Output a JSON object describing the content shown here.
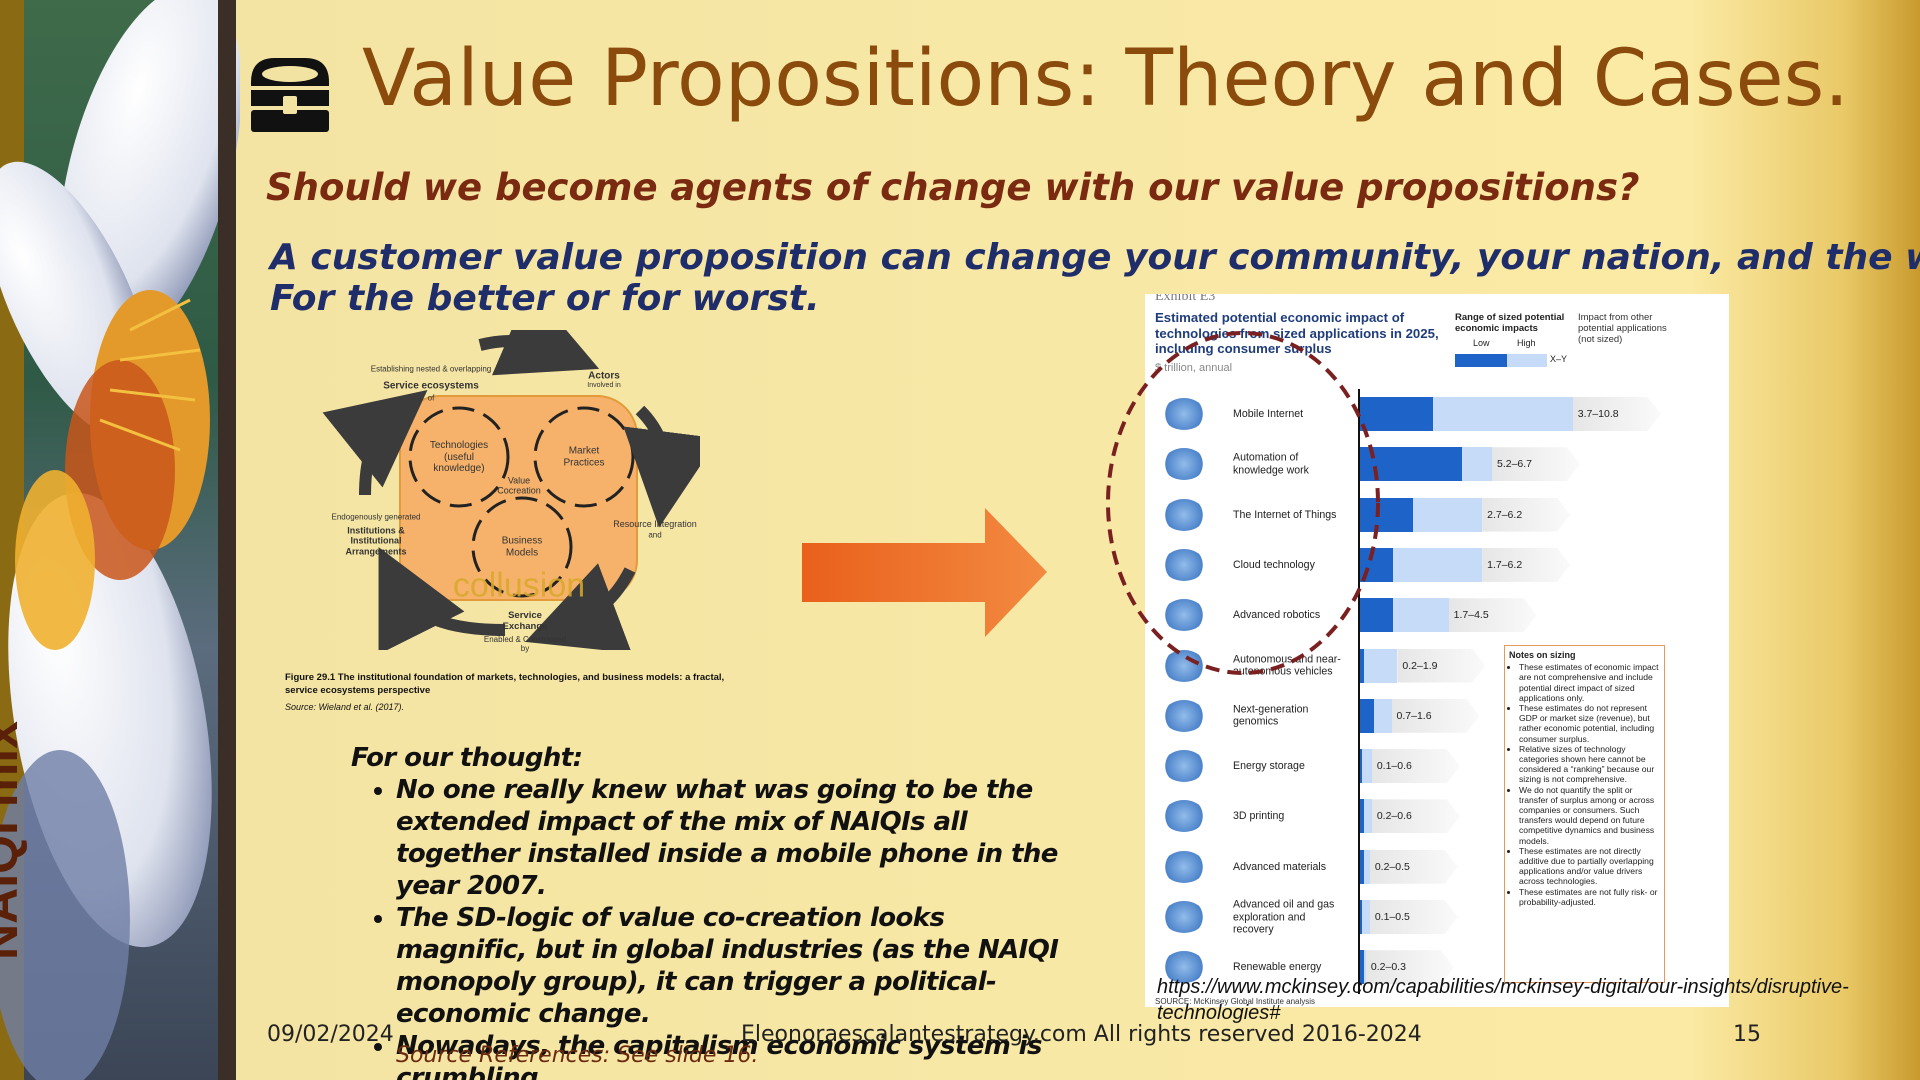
{
  "header": {
    "title": "Value Propositions: Theory and Cases.",
    "subtitle": "Should we become agents of change with our value propositions?"
  },
  "statement": [
    "A customer value proposition can change your community, your nation, and the world.",
    "For the better or for worst."
  ],
  "diagram": {
    "establishing": "Establishing nested & overlapping",
    "service_ecosystems": "Service ecosystems",
    "of": "of",
    "actors": "Actors",
    "involved_in": "Involved in",
    "technologies": "Technologies (useful knowledge)",
    "market_practices": "Market Practices",
    "value_cocreation": "Value Cocreation",
    "business_models": "Business Models",
    "endogenously": "Endogenously generated",
    "institutions": "Institutions & Institutional Arrangements",
    "resource_integration": "Resource Integration",
    "and": "and",
    "collusion": "collusion",
    "service_exchange": "Service Exchange",
    "enabled": "Enabled & Constrained by",
    "caption": "Figure 29.1   The institutional foundation of markets, technologies, and business models: a fractal, service ecosystems perspective",
    "source": "Source: Wieland et al. (2017)."
  },
  "arrow_label": "NAIQI mix",
  "exhibit": {
    "tag": "Exhibit E3",
    "title": "Estimated potential economic impact of technologies from sized applications in 2025, including consumer surplus",
    "unit": "$ trillion, annual",
    "legend": {
      "range": "Range of sized potential economic impacts",
      "low": "Low",
      "high": "High",
      "xy": "X–Y",
      "other": "Impact from other potential applications (not sized)"
    },
    "rows": [
      {
        "label": "Mobile Internet",
        "low": 3.7,
        "high": 10.8,
        "range": "3.7–10.8"
      },
      {
        "label": "Automation of knowledge work",
        "low": 5.2,
        "high": 6.7,
        "range": "5.2–6.7"
      },
      {
        "label": "The Internet of Things",
        "low": 2.7,
        "high": 6.2,
        "range": "2.7–6.2"
      },
      {
        "label": "Cloud technology",
        "low": 1.7,
        "high": 6.2,
        "range": "1.7–6.2"
      },
      {
        "label": "Advanced robotics",
        "low": 1.7,
        "high": 4.5,
        "range": "1.7–4.5"
      },
      {
        "label": "Autonomous and near-autonomous vehicles",
        "low": 0.2,
        "high": 1.9,
        "range": "0.2–1.9"
      },
      {
        "label": "Next-generation genomics",
        "low": 0.7,
        "high": 1.6,
        "range": "0.7–1.6"
      },
      {
        "label": "Energy storage",
        "low": 0.1,
        "high": 0.6,
        "range": "0.1–0.6"
      },
      {
        "label": "3D printing",
        "low": 0.2,
        "high": 0.6,
        "range": "0.2–0.6"
      },
      {
        "label": "Advanced materials",
        "low": 0.2,
        "high": 0.5,
        "range": "0.2–0.5"
      },
      {
        "label": "Advanced oil and gas exploration and recovery",
        "low": 0.1,
        "high": 0.5,
        "range": "0.1–0.5"
      },
      {
        "label": "Renewable energy",
        "low": 0.2,
        "high": 0.3,
        "range": "0.2–0.3"
      }
    ],
    "notes": {
      "title": "Notes on sizing",
      "items": [
        "These estimates of economic impact are not comprehensive and include potential direct impact of sized applications only.",
        "These estimates do not represent GDP or market size (revenue), but rather economic potential, including consumer surplus.",
        "Relative sizes of technology categories shown here cannot be considered a “ranking” because our sizing is not comprehensive.",
        "We do not quantify the split or transfer of surplus among or across companies or consumers. Such transfers would depend on future competitive dynamics and business models.",
        "These estimates are not directly additive due to partially overlapping applications and/or value drivers across technologies.",
        "These estimates are not fully risk- or probability-adjusted."
      ]
    },
    "source": "SOURCE: McKinsey Global Institute analysis"
  },
  "url": "https://www.mckinsey.com/capabilities/mckinsey-digital/our-insights/disruptive-technologies#",
  "thought": {
    "heading": "For our thought:",
    "bullets": [
      "No one really knew what was going to be the extended impact of the mix of NAIQIs all together installed inside a mobile phone in the year 2007.",
      "The SD-logic of value co-creation looks magnific, but in global industries (as the NAIQI monopoly group), it can trigger a political-economic change.",
      "Nowadays, the capitalism economic system is crumbling."
    ],
    "source": "Source References: See slide 16."
  },
  "footer": {
    "date": "09/02/2024",
    "center": "Eleonoraescalantestrategy.com  All rights reserved 2016-2024",
    "page": "15"
  }
}
